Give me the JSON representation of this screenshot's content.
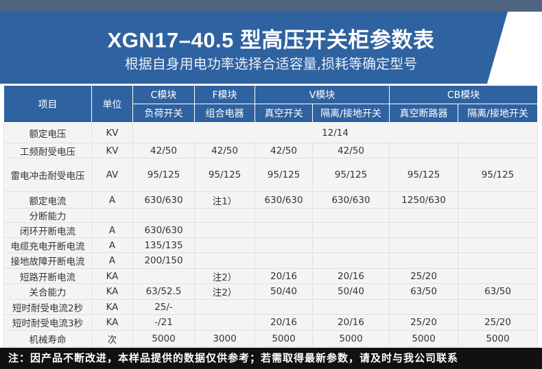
{
  "title": "XGN17–40.5 型高压开关柜参数表",
  "subtitle": "根据自身用电功率选择合适容量,损耗等确定型号",
  "header": {
    "item": "项目",
    "unit": "单位",
    "groups": [
      "C模块",
      "F模块",
      "V模块",
      "CB模块"
    ],
    "subs": [
      "负荷开关",
      "组合电器",
      "真空开关",
      "隔离/接地开关",
      "真空断路器",
      "隔离/接地开关"
    ]
  },
  "rows": [
    {
      "item": "额定电压",
      "unit": "KV",
      "merged": "12/14"
    },
    {
      "item": "工频耐受电压",
      "unit": "KV",
      "values": [
        "42/50",
        "42/50",
        "42/50",
        "42/50",
        "",
        ""
      ]
    },
    {
      "item": "雷电冲击耐受电压",
      "unit": "AV",
      "values": [
        "95/125",
        "95/125",
        "95/125",
        "95/125",
        "95/125",
        "95/125"
      ]
    },
    {
      "item": "额定电流",
      "unit": "A",
      "values": [
        "630/630",
        "注1）",
        "630/630",
        "630/630",
        "1250/630",
        ""
      ]
    },
    {
      "item": "分断能力",
      "unit": "",
      "values": [
        "",
        "",
        "",
        "",
        "",
        ""
      ]
    },
    {
      "item": "闭环开断电流",
      "unit": "A",
      "values": [
        "630/630",
        "",
        "",
        "",
        "",
        ""
      ]
    },
    {
      "item": "电缆充电开断电流",
      "unit": "A",
      "values": [
        "135/135",
        "",
        "",
        "",
        "",
        ""
      ]
    },
    {
      "item": "接地故障开断电流",
      "unit": "A",
      "values": [
        "200/150",
        "",
        "",
        "",
        "",
        ""
      ]
    },
    {
      "item": "短路开断电流",
      "unit": "KA",
      "values": [
        "",
        "注2）",
        "20/16",
        "20/16",
        "25/20",
        ""
      ]
    },
    {
      "item": "关合能力",
      "unit": "KA",
      "values": [
        "63/52.5",
        "注2）",
        "50/40",
        "50/40",
        "63/50",
        "63/50"
      ]
    },
    {
      "item": "短时耐受电流2秒",
      "unit": "KA",
      "values": [
        "25/-",
        "",
        "",
        "",
        "",
        ""
      ]
    },
    {
      "item": "短时耐受电流3秒",
      "unit": "KA",
      "values": [
        "-/21",
        "",
        "20/16",
        "20/16",
        "25/20",
        "25/20"
      ]
    },
    {
      "item": "机械寿命",
      "unit": "次",
      "values": [
        "5000",
        "3000",
        "5000",
        "5000",
        "5000",
        "5000"
      ]
    }
  ],
  "footer": "注：因产品不断改进，本样品提供的数据仅供参考；若需取得最新参数，请及时与我公司联系",
  "colors": {
    "header_blue": "#2f62a0",
    "top_bar": "#4f6480",
    "footer_bg": "#111111"
  }
}
